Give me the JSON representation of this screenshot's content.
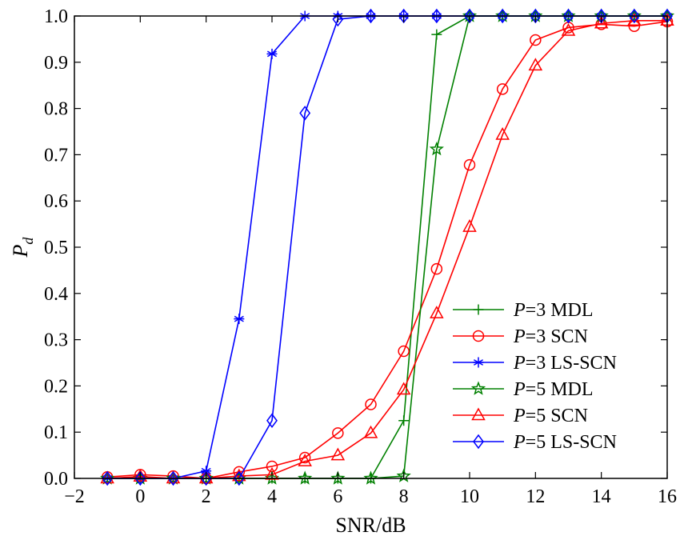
{
  "chart_data": {
    "type": "line",
    "xlabel": "SNR/dB",
    "ylabel": "P",
    "ylabel_sub": "d",
    "xlim": [
      -2,
      16
    ],
    "ylim": [
      0,
      1.0
    ],
    "xticks": [
      "−2",
      "0",
      "2",
      "4",
      "6",
      "8",
      "10",
      "12",
      "14",
      "16"
    ],
    "yticks": [
      "0.0",
      "0.1",
      "0.2",
      "0.3",
      "0.4",
      "0.5",
      "0.6",
      "0.7",
      "0.8",
      "0.9",
      "1.0"
    ],
    "grid": false,
    "legend_position": "bottom-right",
    "x": [
      -1,
      0,
      1,
      2,
      3,
      4,
      5,
      6,
      7,
      8,
      9,
      10,
      11,
      12,
      13,
      14,
      15,
      16
    ],
    "series": [
      {
        "name": "P=3 MDL",
        "name_var": "P",
        "name_rest": "=3 MDL",
        "color": "#008000",
        "marker": "plus",
        "values": [
          0,
          0,
          0,
          0,
          0,
          0,
          0,
          0,
          0,
          0.125,
          0.96,
          1.0,
          1.0,
          1.0,
          1.0,
          1.0,
          1.0,
          1.0
        ]
      },
      {
        "name": "P=3 SCN",
        "name_var": "P",
        "name_rest": "=3 SCN",
        "color": "#ff0000",
        "marker": "circle",
        "values": [
          0.003,
          0.008,
          0.005,
          0,
          0.014,
          0.026,
          0.045,
          0.098,
          0.16,
          0.275,
          0.453,
          0.678,
          0.842,
          0.948,
          0.975,
          0.982,
          0.978,
          0.988
        ]
      },
      {
        "name": "P=3 LS-SCN",
        "name_var": "P",
        "name_rest": "=3 LS-SCN",
        "color": "#0000ff",
        "marker": "asterisk",
        "values": [
          0,
          0,
          0,
          0.016,
          0.345,
          0.918,
          1.0,
          1.0,
          1.0,
          1.0,
          1.0,
          1.0,
          1.0,
          1.0,
          1.0,
          1.0,
          1.0,
          1.0
        ]
      },
      {
        "name": "P=5 MDL",
        "name_var": "P",
        "name_rest": "=5 MDL",
        "color": "#008000",
        "marker": "star",
        "values": [
          0,
          0,
          0,
          0,
          0,
          0,
          0,
          0,
          0,
          0.005,
          0.712,
          1.0,
          1.0,
          1.0,
          1.0,
          1.0,
          1.0,
          1.0
        ]
      },
      {
        "name": "P=5 SCN",
        "name_var": "P",
        "name_rest": "=5 SCN",
        "color": "#ff0000",
        "marker": "triangle",
        "values": [
          0,
          0.004,
          0,
          0,
          0.005,
          0.008,
          0.037,
          0.05,
          0.098,
          0.192,
          0.357,
          0.544,
          0.743,
          0.893,
          0.968,
          0.984,
          0.99,
          0.99
        ]
      },
      {
        "name": "P=5 LS-SCN",
        "name_var": "P",
        "name_rest": "=5 LS-SCN",
        "color": "#0000ff",
        "marker": "diamond",
        "values": [
          0,
          0,
          0,
          0,
          0,
          0.125,
          0.79,
          0.993,
          1.0,
          1.0,
          1.0,
          1.0,
          1.0,
          1.0,
          1.0,
          1.0,
          1.0,
          1.0
        ]
      }
    ]
  }
}
